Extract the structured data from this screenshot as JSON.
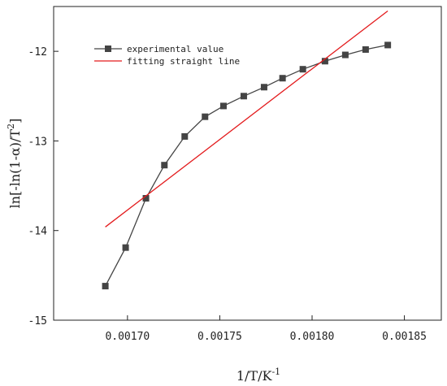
{
  "chart_data": {
    "type": "scatter",
    "xlabel": "1/T/K",
    "xlabel_sup": "-1",
    "ylabel": "ln[-ln(1-α)/T",
    "ylabel_sup": "2",
    "ylabel_end": "]",
    "xlim": [
      0.00166,
      0.00187
    ],
    "ylim": [
      -15,
      -11.5
    ],
    "xticks": [
      0.0017,
      0.00175,
      0.0018,
      0.00185
    ],
    "xtick_labels": [
      "0.00170",
      "0.00175",
      "0.00180",
      "0.00185"
    ],
    "yticks": [
      -12,
      -13,
      -14,
      -15
    ],
    "ytick_labels": [
      "-12",
      "-13",
      "-14",
      "-15"
    ],
    "grid": false,
    "legend_position": "top-left",
    "series": [
      {
        "name": "experimental value",
        "kind": "line+markers",
        "color": "#444444",
        "marker": "square",
        "x": [
          0.001688,
          0.001699,
          0.00171,
          0.00172,
          0.001731,
          0.001742,
          0.001752,
          0.001763,
          0.001774,
          0.001784,
          0.001795,
          0.001807,
          0.001818,
          0.001829,
          0.001841
        ],
        "y": [
          -14.62,
          -14.19,
          -13.64,
          -13.27,
          -12.95,
          -12.73,
          -12.61,
          -12.5,
          -12.4,
          -12.3,
          -12.2,
          -12.11,
          -12.04,
          -11.98,
          -11.93
        ]
      },
      {
        "name": "fitting straight line",
        "kind": "line",
        "color": "#e31a1c",
        "x": [
          0.001688,
          0.001841
        ],
        "y": [
          -13.96,
          -11.55
        ]
      }
    ]
  }
}
